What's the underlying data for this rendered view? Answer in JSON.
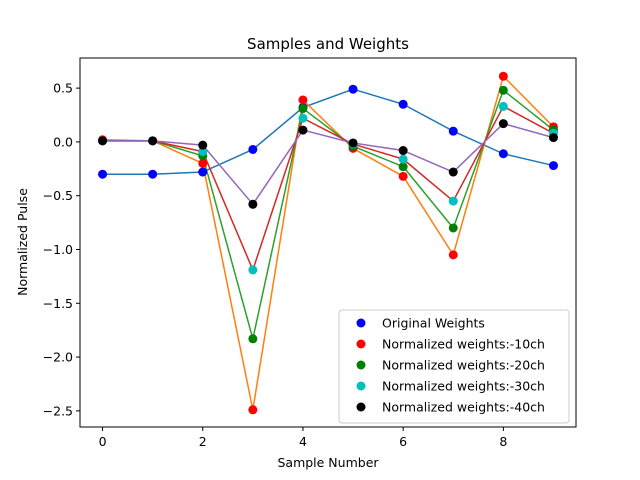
{
  "chart_data": {
    "type": "line",
    "title": "Samples and Weights",
    "xlabel": "Sample Number",
    "ylabel": "Normalized Pulse",
    "xlim": [
      -0.45,
      9.45
    ],
    "ylim": [
      -2.65,
      0.78
    ],
    "xticks": [
      0,
      2,
      4,
      6,
      8
    ],
    "yticks": [
      0.5,
      0.0,
      -0.5,
      -1.0,
      -1.5,
      -2.0,
      -2.5
    ],
    "ytick_labels": [
      "0.5",
      "0.0",
      "−0.5",
      "−1.0",
      "−1.5",
      "−2.0",
      "−2.5"
    ],
    "grid": false,
    "legend_position": "lower-right",
    "x": [
      0,
      1,
      2,
      3,
      4,
      5,
      6,
      7,
      8,
      9
    ],
    "series": [
      {
        "name": "Original Weights",
        "marker_color": "#0000ff",
        "line_color": "#1f77b4",
        "values": [
          -0.3,
          -0.3,
          -0.28,
          -0.07,
          0.32,
          0.49,
          0.35,
          0.1,
          -0.11,
          -0.22
        ]
      },
      {
        "name": "Normalized weights:-10ch",
        "marker_color": "#ff0000",
        "line_color": "#ff7f0e",
        "values": [
          0.02,
          0.01,
          -0.2,
          -2.49,
          0.39,
          -0.06,
          -0.32,
          -1.05,
          0.61,
          0.14
        ]
      },
      {
        "name": "Normalized weights:-20ch",
        "marker_color": "#008000",
        "line_color": "#2ca02c",
        "values": [
          0.01,
          0.01,
          -0.13,
          -1.83,
          0.31,
          -0.04,
          -0.23,
          -0.8,
          0.48,
          0.11
        ]
      },
      {
        "name": "Normalized weights:-30ch",
        "marker_color": "#00bfbf",
        "line_color": "#d62728",
        "values": [
          0.01,
          0.01,
          -0.09,
          -1.19,
          0.22,
          -0.02,
          -0.16,
          -0.55,
          0.33,
          0.08
        ]
      },
      {
        "name": "Normalized weights:-40ch",
        "marker_color": "#000000",
        "line_color": "#9467bd",
        "values": [
          0.01,
          0.01,
          -0.03,
          -0.58,
          0.11,
          -0.01,
          -0.08,
          -0.28,
          0.17,
          0.04
        ]
      }
    ]
  }
}
